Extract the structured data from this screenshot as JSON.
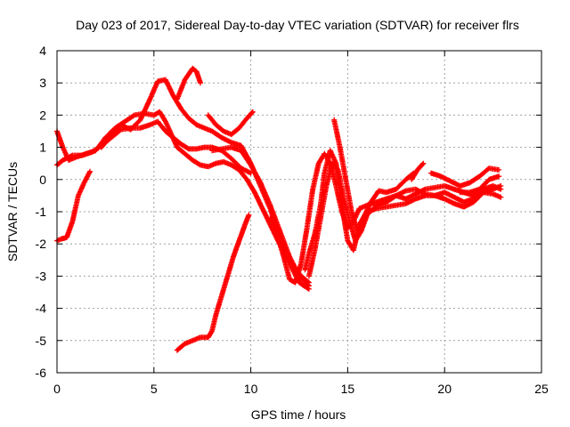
{
  "chart_data": {
    "type": "scatter",
    "title": "Day 023 of 2017, Sidereal Day-to-day VTEC variation (SDTVAR) for receiver flrs",
    "xlabel": "GPS time / hours",
    "ylabel": "SDTVAR / TECUs",
    "xlim": [
      0,
      25
    ],
    "ylim": [
      -6,
      4
    ],
    "xticks": [
      "0",
      "5",
      "10",
      "15",
      "20",
      "25"
    ],
    "yticks": [
      "-6",
      "-5",
      "-4",
      "-3",
      "-2",
      "-1",
      "0",
      "1",
      "2",
      "3",
      "4"
    ],
    "grid": true,
    "marker": "plus",
    "color": "#ff0000",
    "series": [
      {
        "x": [
          0.0,
          0.3,
          0.8,
          1.3,
          1.8,
          2.3,
          2.8,
          3.3,
          3.8,
          4.3,
          4.8,
          5.2,
          5.6,
          6.0,
          6.4,
          6.8,
          7.2,
          7.6,
          8.0,
          8.5,
          9.0,
          9.5,
          10.0
        ],
        "y": [
          0.45,
          0.6,
          0.75,
          0.75,
          0.85,
          1.05,
          1.3,
          1.55,
          1.6,
          1.6,
          1.7,
          1.8,
          1.5,
          1.3,
          1.1,
          0.95,
          0.95,
          1.0,
          1.0,
          0.9,
          0.65,
          0.35,
          0.2
        ]
      },
      {
        "x": [
          0.0,
          0.3,
          0.6,
          1.0,
          1.5,
          2.0,
          2.5,
          3.0,
          3.5,
          4.0,
          4.5,
          5.0,
          5.3,
          5.6,
          5.9,
          6.2,
          6.6,
          7.0,
          7.4,
          7.8,
          8.2,
          8.6,
          9.0,
          9.4,
          9.8,
          10.2,
          10.6,
          11.0,
          11.4,
          11.8,
          12.2,
          12.6,
          13.0
        ],
        "y": [
          1.5,
          1.0,
          0.6,
          0.7,
          0.8,
          0.9,
          1.3,
          1.6,
          1.8,
          2.0,
          2.05,
          2.0,
          2.1,
          1.8,
          1.4,
          1.0,
          0.8,
          0.6,
          0.45,
          0.4,
          0.5,
          0.55,
          0.45,
          0.3,
          0.0,
          -0.4,
          -0.9,
          -1.4,
          -1.9,
          -2.3,
          -2.7,
          -3.0,
          -3.2
        ]
      },
      {
        "x": [
          2.3,
          2.8,
          3.3,
          3.8,
          4.3,
          4.8,
          5.2,
          5.6,
          6.0,
          6.4,
          6.8,
          7.2,
          7.6,
          8.0,
          8.5,
          9.0,
          9.5,
          10.0,
          10.5,
          11.0,
          11.5,
          12.0,
          12.5,
          13.0
        ],
        "y": [
          1.0,
          1.4,
          1.7,
          1.55,
          1.85,
          2.5,
          3.05,
          3.1,
          2.6,
          2.2,
          1.9,
          1.7,
          1.6,
          1.5,
          1.3,
          1.15,
          1.05,
          0.5,
          -0.2,
          -0.9,
          -1.8,
          -2.6,
          -3.2,
          -3.4
        ]
      },
      {
        "x": [
          6.2,
          6.6,
          7.0,
          7.2,
          7.4
        ],
        "y": [
          2.5,
          3.1,
          3.45,
          3.35,
          3.0
        ]
      },
      {
        "x": [
          7.8,
          8.2,
          8.6,
          9.0,
          9.4,
          9.8,
          10.1
        ],
        "y": [
          2.0,
          1.7,
          1.5,
          1.4,
          1.6,
          1.9,
          2.1
        ]
      },
      {
        "x": [
          8.0,
          8.5,
          9.0,
          9.5,
          10.0,
          10.5,
          11.0,
          11.5,
          12.0,
          12.5,
          13.0
        ],
        "y": [
          0.9,
          0.95,
          1.0,
          0.9,
          0.45,
          -0.1,
          -0.8,
          -1.6,
          -2.4,
          -3.0,
          -3.3
        ]
      },
      {
        "x": [
          0.0,
          0.2,
          0.5,
          0.8,
          1.1,
          1.4,
          1.7
        ],
        "y": [
          -1.9,
          -1.85,
          -1.8,
          -1.3,
          -0.5,
          -0.1,
          0.25
        ]
      },
      {
        "x": [
          6.2,
          6.6,
          7.0,
          7.4,
          7.8,
          8.0,
          8.2,
          8.5,
          8.8,
          9.1,
          9.4,
          9.7,
          9.9
        ],
        "y": [
          -5.3,
          -5.1,
          -5.0,
          -4.9,
          -4.9,
          -4.7,
          -4.2,
          -3.6,
          -3.0,
          -2.4,
          -1.9,
          -1.4,
          -1.1
        ]
      },
      {
        "x": [
          11.0,
          11.4,
          11.7,
          12.0,
          12.3,
          12.6,
          12.9,
          13.2,
          13.5,
          13.8,
          14.1,
          14.4,
          14.7,
          15.0,
          15.3,
          15.6,
          16.0,
          16.5,
          17.0,
          17.5,
          18.0,
          18.5,
          19.0,
          19.5,
          20.0,
          20.5,
          21.0,
          21.5,
          22.0,
          22.5,
          22.9
        ],
        "y": [
          -1.2,
          -1.8,
          -2.4,
          -3.1,
          -3.2,
          -2.6,
          -1.5,
          -0.3,
          0.5,
          0.8,
          0.5,
          -0.2,
          -1.0,
          -1.5,
          -1.3,
          -0.9,
          -0.8,
          -0.7,
          -0.6,
          -0.5,
          -0.35,
          -0.3,
          -0.45,
          -0.5,
          -0.4,
          -0.55,
          -0.7,
          -0.6,
          -0.4,
          -0.45,
          -0.55
        ]
      },
      {
        "x": [
          13.0,
          13.3,
          13.6,
          13.9,
          14.2,
          14.5,
          14.8,
          15.1,
          15.4,
          15.7,
          16.0,
          16.5,
          17.0,
          17.5,
          18.0,
          18.5,
          19.0,
          19.5,
          20.0,
          20.5,
          21.0,
          21.5,
          22.0,
          22.5,
          22.9
        ],
        "y": [
          -3.0,
          -2.2,
          -1.2,
          -0.2,
          0.5,
          0.3,
          -0.6,
          -1.3,
          -1.9,
          -1.6,
          -1.1,
          -0.8,
          -0.7,
          -0.5,
          -0.6,
          -0.45,
          -0.3,
          -0.25,
          -0.2,
          -0.3,
          -0.4,
          -0.5,
          -0.3,
          -0.2,
          -0.3
        ]
      },
      {
        "x": [
          12.8,
          13.0,
          13.3,
          13.6,
          13.8,
          14.1,
          14.4,
          14.7,
          15.0,
          15.3,
          15.6,
          16.0,
          16.5,
          17.0,
          17.5,
          18.0,
          18.5,
          19.0,
          19.5,
          20.0,
          20.5,
          21.0,
          21.5,
          22.0,
          22.5,
          22.9
        ],
        "y": [
          -2.8,
          -2.3,
          -1.7,
          -0.8,
          0.2,
          0.9,
          0.5,
          -0.8,
          -1.9,
          -2.2,
          -1.4,
          -1.0,
          -0.9,
          -0.85,
          -0.8,
          -0.75,
          -0.6,
          -0.5,
          -0.5,
          -0.6,
          -0.75,
          -0.85,
          -0.7,
          -0.4,
          -0.3,
          -0.2
        ]
      },
      {
        "x": [
          14.3,
          14.6,
          14.9,
          15.2,
          15.5,
          15.8,
          16.2,
          16.6,
          17.0,
          17.5,
          18.0,
          18.4
        ],
        "y": [
          1.85,
          1.0,
          0.0,
          -1.0,
          -1.6,
          -1.2,
          -0.7,
          -0.35,
          -0.4,
          -0.3,
          0.0,
          0.2
        ]
      },
      {
        "x": [
          18.3,
          18.6,
          18.9
        ],
        "y": [
          0.0,
          0.3,
          0.5
        ]
      },
      {
        "x": [
          19.3,
          19.8,
          20.3,
          20.8,
          21.3,
          21.8,
          22.3,
          22.8
        ],
        "y": [
          0.2,
          0.1,
          -0.05,
          -0.2,
          -0.1,
          0.1,
          0.35,
          0.3
        ]
      },
      {
        "x": [
          20.8,
          21.3,
          21.8,
          22.3,
          22.8
        ],
        "y": [
          -0.4,
          -0.4,
          -0.3,
          0.0,
          0.1
        ]
      }
    ]
  }
}
